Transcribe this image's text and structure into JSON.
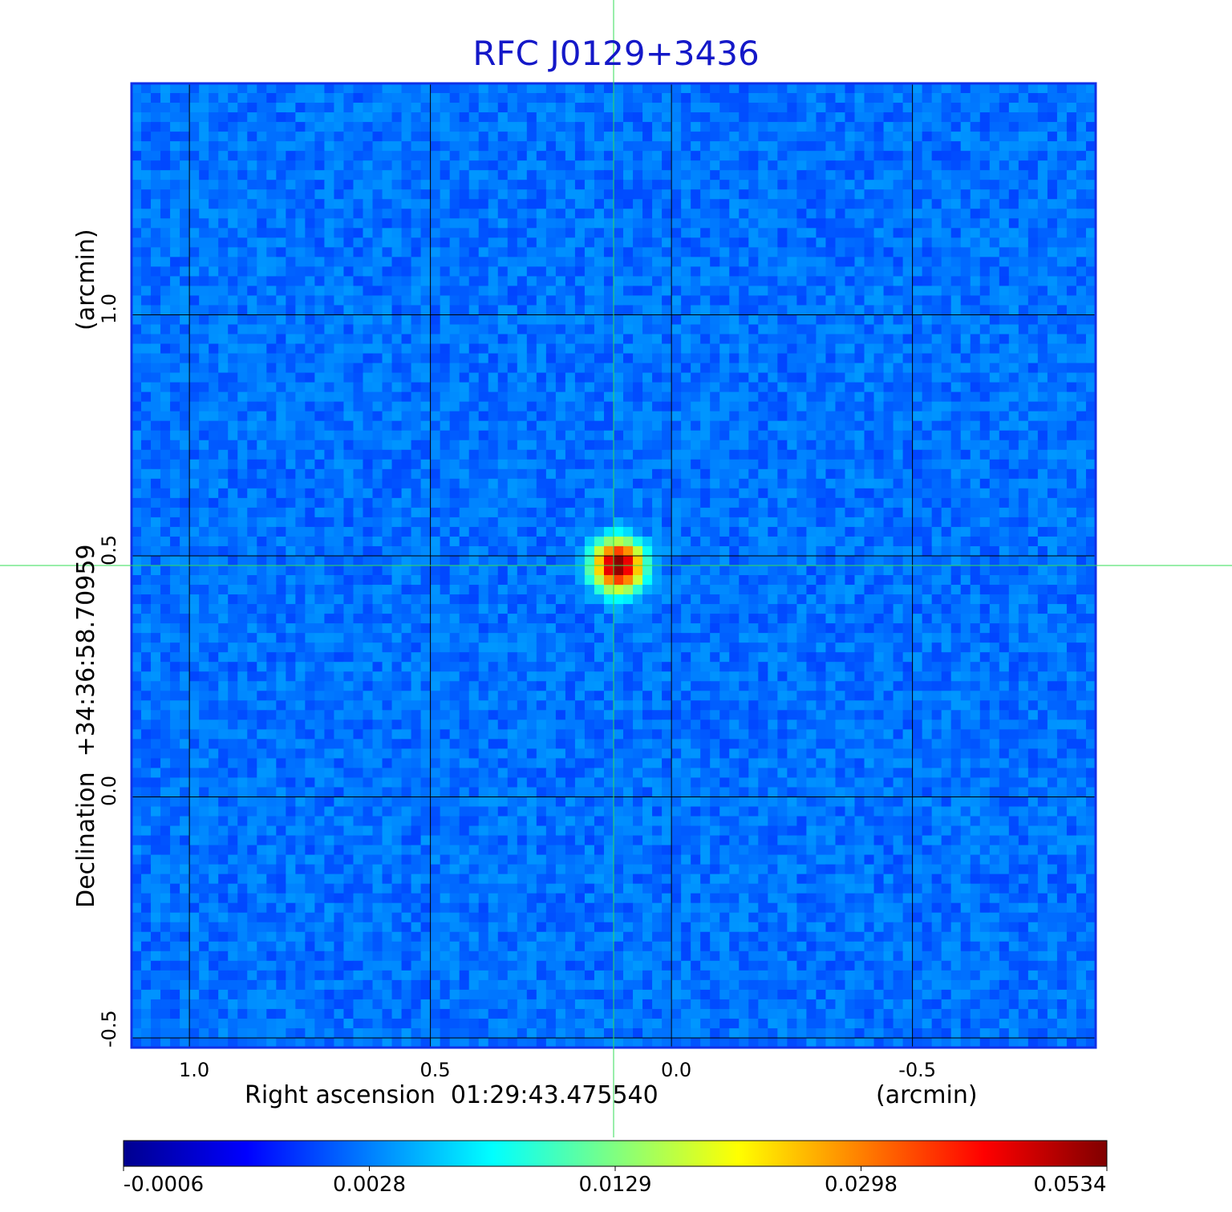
{
  "chart_data": {
    "type": "heatmap",
    "title": "RFC J0129+3436",
    "xlabel": "Right ascension  01:29:43.475540",
    "xunit": "(arcmin)",
    "ylabel": "Declination  +34:36:58.70959",
    "yunit": "(arcmin)",
    "xlim": [
      1.12,
      -0.88
    ],
    "ylim": [
      -0.52,
      1.48
    ],
    "xticks": [
      "1.0",
      "0.5",
      "0.0",
      "-0.5"
    ],
    "xtick_values": [
      1.0,
      0.5,
      0.0,
      -0.5
    ],
    "yticks": [
      "1.0",
      "0.5",
      "0.0",
      "-0.5"
    ],
    "ytick_values": [
      1.0,
      0.5,
      0.0,
      -0.5
    ],
    "grid": true,
    "crosshair": {
      "x": 0.12,
      "y": 0.48,
      "color": "#33dd55"
    },
    "source_peak": {
      "x": 0.11,
      "y": 0.48,
      "value": 0.0534
    },
    "colormap": "jet",
    "colorbar_ticks": [
      "-0.0006",
      "0.0028",
      "0.0129",
      "0.0298",
      "0.0534"
    ],
    "colorbar_range": [
      -0.0006,
      0.0534
    ],
    "background_value": 0.001,
    "colors": {
      "title": "#1418c8",
      "grid": "#000000",
      "frame": "#1030e8"
    }
  }
}
